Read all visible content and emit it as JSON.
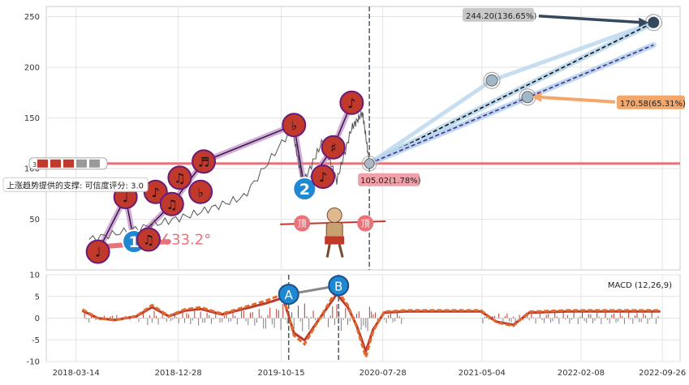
{
  "chart_data": [
    {
      "type": "line",
      "panel": "price",
      "ylim": [
        0,
        260
      ],
      "yticks": [
        50,
        100,
        150,
        200,
        250
      ],
      "grid": true,
      "series": [
        {
          "points": [
            [
              "2018-04-20",
              30
            ],
            [
              "2018-09-20",
              42
            ],
            [
              "2019-02-10",
              55
            ],
            [
              "2019-07-01",
              72
            ],
            [
              "2019-11-15",
              140
            ],
            [
              "2019-12-15",
              85
            ],
            [
              "2020-02-10",
              128
            ],
            [
              "2020-03-20",
              88
            ],
            [
              "2020-05-01",
              140
            ],
            [
              "2020-06-01",
              155
            ],
            [
              "2020-06-20",
              105
            ]
          ]
        }
      ],
      "markers": [
        {
          "date": "2018-05-15",
          "value": 18,
          "symbol": "♩",
          "style": "red"
        },
        {
          "date": "2018-08-01",
          "value": 72,
          "symbol": "♩",
          "style": "red"
        },
        {
          "date": "2018-08-25",
          "value": 28,
          "symbol": "1",
          "style": "blue"
        },
        {
          "date": "2018-10-05",
          "value": 30,
          "symbol": "♫",
          "style": "red"
        },
        {
          "date": "2018-10-25",
          "value": 77,
          "symbol": "♪",
          "style": "red"
        },
        {
          "date": "2018-12-10",
          "value": 65,
          "symbol": "♫",
          "style": "red"
        },
        {
          "date": "2019-01-01",
          "value": 91,
          "symbol": "♫",
          "style": "red"
        },
        {
          "date": "2019-03-10",
          "value": 107,
          "symbol": "♬",
          "style": "red"
        },
        {
          "date": "2019-03-01",
          "value": 77,
          "symbol": "♭",
          "style": "red"
        },
        {
          "date": "2019-11-20",
          "value": 143,
          "symbol": "♭",
          "style": "red"
        },
        {
          "date": "2019-12-20",
          "value": 80,
          "symbol": "2",
          "style": "blue"
        },
        {
          "date": "2020-02-10",
          "value": 92,
          "symbol": "♪",
          "style": "red"
        },
        {
          "date": "2020-03-10",
          "value": 121,
          "symbol": "♯",
          "style": "red"
        },
        {
          "date": "2020-05-01",
          "value": 165,
          "symbol": "♪",
          "style": "red"
        }
      ],
      "support_line": {
        "value": 105,
        "label": "上涨趋势提供的支撑: 可信度评分: 3.0"
      },
      "angle_label": "∡33.2°",
      "top_badge": {
        "label": "顶"
      },
      "projections": [
        {
          "label": "244.20(136.65%)",
          "end_date": "2022-09-01",
          "end_value": 244.2,
          "via_date": "2021-06-01",
          "via_value": 187
        },
        {
          "label": "170.58(65.31%)",
          "end_date": "2022-09-01",
          "end_value": 222,
          "via_date": "2021-09-10",
          "via_value": 170.58
        }
      ],
      "current_label": "105.02(1.78%)",
      "vlines": [
        "2020-06-20"
      ]
    },
    {
      "type": "line",
      "panel": "macd",
      "ylim": [
        -10,
        10
      ],
      "yticks": [
        -10,
        -5,
        0,
        5,
        10
      ],
      "legend": "MACD (12,26,9)",
      "legend_position": "top-right",
      "marks": [
        {
          "date": "2019-11-05",
          "value": 5.5,
          "label": "A"
        },
        {
          "date": "2020-03-25",
          "value": 7.5,
          "label": "B"
        }
      ],
      "vlines": [
        "2019-11-05",
        "2020-03-25"
      ],
      "series": [
        {
          "points": [
            [
              "2018-04-01",
              2
            ],
            [
              "2018-05-15",
              0
            ],
            [
              "2018-07-01",
              -0.5
            ],
            [
              "2018-09-01",
              0.5
            ],
            [
              "2018-10-15",
              3
            ],
            [
              "2018-12-01",
              0.5
            ],
            [
              "2019-01-15",
              2
            ],
            [
              "2019-03-01",
              2.5
            ],
            [
              "2019-05-01",
              1
            ],
            [
              "2019-07-01",
              2.5
            ],
            [
              "2019-09-01",
              4
            ],
            [
              "2019-10-20",
              5.5
            ],
            [
              "2019-11-20",
              -4
            ],
            [
              "2019-12-20",
              -6
            ],
            [
              "2020-02-01",
              0
            ],
            [
              "2020-03-20",
              6.5
            ],
            [
              "2020-04-20",
              3
            ],
            [
              "2020-05-15",
              -2
            ],
            [
              "2020-06-10",
              -9
            ],
            [
              "2020-07-01",
              -3
            ],
            [
              "2020-08-01",
              1.5
            ],
            [
              "2020-10-01",
              1.8
            ],
            [
              "2021-05-01",
              1.8
            ],
            [
              "2021-06-15",
              -1
            ],
            [
              "2021-08-01",
              -1.8
            ],
            [
              "2021-09-15",
              1.5
            ],
            [
              "2022-01-01",
              1.8
            ],
            [
              "2022-09-20",
              1.8
            ]
          ]
        }
      ]
    }
  ],
  "x_axis": {
    "tick_labels": [
      "2018-03-14",
      "2018-12-28",
      "2019-10-15",
      "2020-07-28",
      "2021-05-04",
      "2022-02-08",
      "2022-09-26"
    ],
    "tick_dates": [
      "2018-03-14",
      "2018-12-28",
      "2019-10-15",
      "2020-07-28",
      "2021-05-04",
      "2022-02-08",
      "2022-09-26"
    ],
    "range": [
      "2017-12-20",
      "2022-11-15"
    ]
  },
  "colors": {
    "support": "#e8737a",
    "projection_blue": "#b9d6ee",
    "price_line": "#555555",
    "macd_line": "#e06b2c",
    "signal_line": "#c0392b",
    "marker_red": "#c0392b",
    "marker_blue": "#1f88d2",
    "tag_orange": "#f4a76a",
    "tag_gray": "#c8c8c8",
    "tag_pink": "#f0a0a8"
  },
  "icons": {
    "figure": "monkey-king-figure-icon"
  }
}
